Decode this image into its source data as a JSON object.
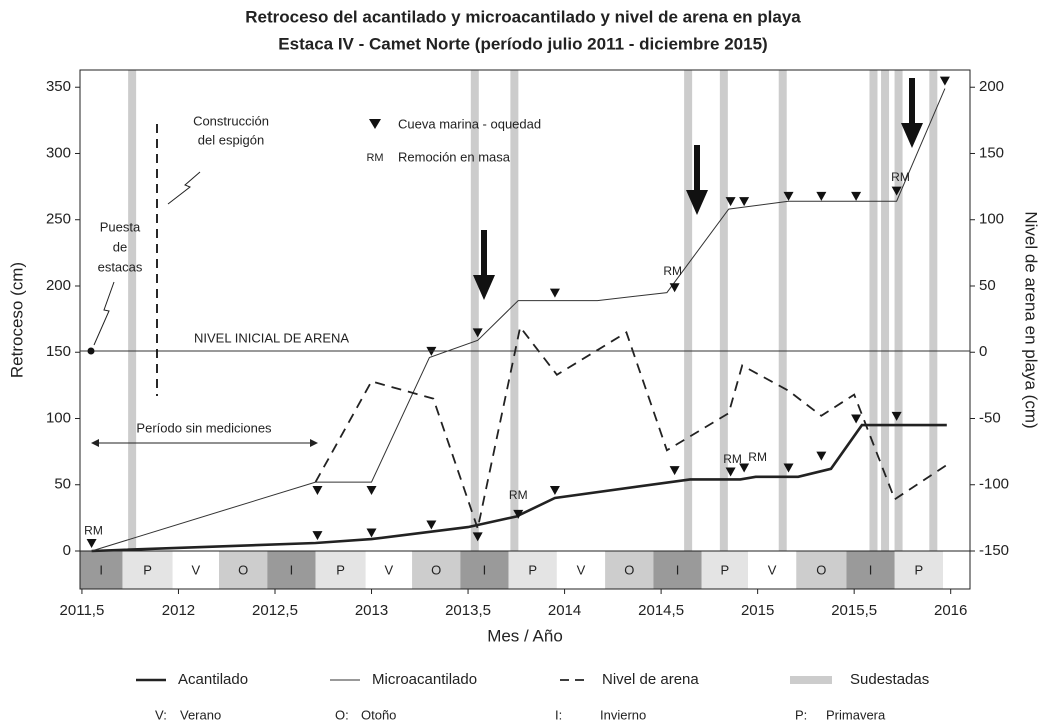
{
  "chart_data": {
    "type": "line",
    "title": "Retroceso del acantilado y microacantilado y nivel de arena en playa",
    "subtitle": "Estaca IV - Camet Norte (período julio 2011 - diciembre 2015)",
    "x_label": "Mes / Año",
    "y_label": "Retroceso (cm)",
    "y2_label": "Nivel de arena en playa (cm)",
    "xlim": [
      2011.49,
      2016.1
    ],
    "xticks": [
      {
        "value": 2011.5,
        "label": "2011,5"
      },
      2012,
      {
        "value": 2012.5,
        "label": "2012,5"
      },
      2013,
      {
        "value": 2013.5,
        "label": "2013,5"
      },
      2014,
      {
        "value": 2014.5,
        "label": "2014,5"
      },
      2015,
      {
        "value": 2015.5,
        "label": "2015,5"
      },
      2016
    ],
    "ylim": [
      0,
      363
    ],
    "yticks": [
      0,
      50,
      100,
      150,
      200,
      250,
      300,
      350
    ],
    "y2lim": [
      -150,
      213
    ],
    "y2ticks": [
      -150,
      -100,
      -50,
      0,
      50,
      100,
      150,
      200
    ],
    "series": [
      {
        "name": "Acantilado",
        "color": "#222222",
        "width": 2.6,
        "dash": false,
        "x": [
          2011.55,
          2012.71,
          2013,
          2013.5,
          2013.75,
          2013.95,
          2014.65,
          2014.91,
          2014.99,
          2015.21,
          2015.38,
          2015.54,
          2015.98
        ],
        "values": [
          0,
          6,
          9,
          18,
          26,
          40,
          54,
          54,
          56,
          56,
          62,
          95,
          95
        ]
      },
      {
        "name": "Microacantilado",
        "color": "#333333",
        "width": 1,
        "dash": false,
        "x": [
          2011.55,
          2012.71,
          2013,
          2013.3,
          2013.55,
          2013.76,
          2014.17,
          2014.53,
          2014.85,
          2015.16,
          2015.72,
          2015.97
        ],
        "values": [
          0,
          52,
          52,
          146,
          159,
          189,
          189,
          195,
          258,
          264,
          264,
          349
        ]
      },
      {
        "name": "Nivel de arena",
        "color": "#222222",
        "width": 1.8,
        "dash": true,
        "axis": "y2",
        "x": [
          2012.71,
          2013,
          2013.32,
          2013.55,
          2013.77,
          2013.96,
          2014.32,
          2014.53,
          2014.85,
          2014.92,
          2015.16,
          2015.33,
          2015.5,
          2015.71,
          2015.98
        ],
        "values": [
          -98,
          -22,
          -35,
          -133,
          19,
          -17,
          15,
          -74,
          -46,
          -10,
          -29,
          -48,
          -32,
          -111,
          -85
        ]
      }
    ],
    "markers": {
      "name": "Cueva marina - oquedad",
      "color": "#111111",
      "x": [
        2011.55,
        2012.72,
        2013,
        2013.31,
        2013.55,
        2013.76,
        2013.95,
        2014.57,
        2014.86,
        2014.93,
        2015.16,
        2015.33,
        2015.51,
        2015.72,
        2012.72,
        2013,
        2013.31,
        2013.55,
        2013.95,
        2014.57,
        2014.86,
        2014.93,
        2015.16,
        2015.33,
        2015.51,
        2015.72,
        2015.97
      ],
      "values": [
        6,
        12,
        14,
        20,
        11,
        28,
        46,
        61,
        60,
        63,
        63,
        72,
        100,
        102,
        46,
        46,
        151,
        165,
        195,
        199,
        264,
        264,
        268,
        268,
        268,
        272,
        355
      ]
    },
    "sudestadas": {
      "name": "Sudestadas",
      "color": "#cccccc",
      "x": [
        2011.76,
        2013.535,
        2013.74,
        2014.64,
        2014.825,
        2015.13,
        2015.6,
        2015.66,
        2015.73,
        2015.91
      ]
    },
    "annotations": [
      {
        "text": "RM",
        "x": 2011.56,
        "y": 15
      },
      {
        "text": "RM",
        "x": 2013.76,
        "y": 41.5
      },
      {
        "text": "RM",
        "x": 2014.56,
        "y": 210.6
      },
      {
        "text": "RM",
        "x": 2014.87,
        "y": 68.7
      },
      {
        "text": "RM",
        "x": 2015.0,
        "y": 70.2
      },
      {
        "text": "RM",
        "x": 2015.74,
        "y": 281.5
      }
    ],
    "rm_legend": {
      "code": "RM",
      "label": "Remoción en masa"
    },
    "notes": {
      "construction": [
        "Construcción",
        "del espigón"
      ],
      "stakes": [
        "Puesta",
        "de",
        "estacas"
      ],
      "initial_level": "NIVEL INICIAL DE ARENA",
      "no_measure": "Período sin mediciones"
    },
    "seasons": {
      "labels": [
        "I",
        "P",
        "V",
        "O",
        "I",
        "P",
        "V",
        "O",
        "I",
        "P",
        "V",
        "O",
        "I",
        "P",
        "V",
        "O",
        "I",
        "P"
      ],
      "edges": [
        2011.49,
        2011.71,
        2011.97,
        2012.21,
        2012.46,
        2012.71,
        2012.97,
        2013.21,
        2013.46,
        2013.71,
        2013.96,
        2014.21,
        2014.46,
        2014.71,
        2014.95,
        2015.2,
        2015.46,
        2015.71,
        2015.96
      ],
      "colors": {
        "I": "#9a9a9a",
        "P": "#e4e4e4",
        "V": "#ffffff",
        "O": "#cdcdcd"
      }
    },
    "season_key": [
      {
        "code": "V:",
        "name": "Verano"
      },
      {
        "code": "O:",
        "name": "Otoño"
      },
      {
        "code": "I:",
        "name": "Invierno"
      },
      {
        "code": "P:",
        "name": "Primavera"
      }
    ]
  }
}
